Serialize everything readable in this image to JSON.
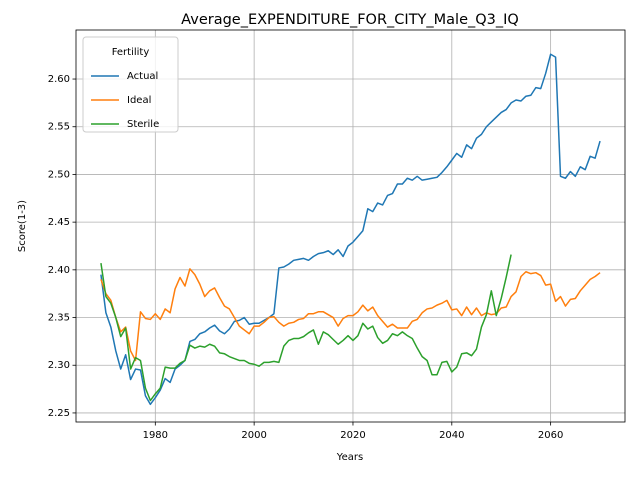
{
  "chart_data": {
    "type": "line",
    "title": "Average_EXPENDITURE_FOR_CITY_Male_Q3_IQ",
    "xlabel": "Years",
    "ylabel": "Score(1-3)",
    "legend_title": "Fertility",
    "legend": "upper left",
    "grid": true,
    "x": [
      1969,
      1970,
      1971,
      1972,
      1973,
      1974,
      1975,
      1976,
      1977,
      1978,
      1979,
      1980,
      1981,
      1982,
      1983,
      1984,
      1985,
      1986,
      1987,
      1988,
      1989,
      1990,
      1991,
      1992,
      1993,
      1994,
      1995,
      1996,
      1997,
      1998,
      1999,
      2000,
      2001,
      2002,
      2003,
      2004,
      2005,
      2006,
      2007,
      2008,
      2009,
      2010,
      2011,
      2012,
      2013,
      2014,
      2015,
      2016,
      2017,
      2018,
      2019,
      2020,
      2021,
      2022,
      2023,
      2024,
      2025,
      2026,
      2027,
      2028,
      2029,
      2030,
      2031,
      2032,
      2033,
      2034,
      2035,
      2036,
      2037,
      2038,
      2039,
      2040,
      2041,
      2042,
      2043,
      2044,
      2045,
      2046,
      2047,
      2048,
      2049,
      2050,
      2051,
      2052,
      2053,
      2054,
      2055,
      2056,
      2057,
      2058,
      2059,
      2060,
      2061,
      2062,
      2063,
      2064,
      2065,
      2066,
      2067,
      2068,
      2069,
      2070
    ],
    "series": [
      {
        "name": "Actual",
        "color": "#1f77b4",
        "values": [
          2.395,
          2.355,
          2.34,
          2.315,
          2.296,
          2.311,
          2.285,
          2.296,
          2.295,
          2.268,
          2.259,
          2.266,
          2.274,
          2.286,
          2.282,
          2.296,
          2.3,
          2.305,
          2.325,
          2.327,
          2.333,
          2.335,
          2.339,
          2.342,
          2.336,
          2.333,
          2.338,
          2.346,
          2.347,
          2.35,
          2.343,
          2.344,
          2.344,
          2.347,
          2.35,
          2.354,
          2.402,
          2.403,
          2.406,
          2.41,
          2.411,
          2.412,
          2.41,
          2.414,
          2.417,
          2.418,
          2.42,
          2.416,
          2.421,
          2.414,
          2.425,
          2.429,
          2.435,
          2.441,
          2.464,
          2.461,
          2.47,
          2.468,
          2.478,
          2.48,
          2.49,
          2.49,
          2.496,
          2.494,
          2.498,
          2.494,
          2.495,
          2.496,
          2.497,
          2.502,
          2.508,
          2.515,
          2.522,
          2.518,
          2.531,
          2.527,
          2.538,
          2.542,
          2.55,
          2.555,
          2.56,
          2.565,
          2.568,
          2.575,
          2.578,
          2.577,
          2.582,
          2.583,
          2.591,
          2.59,
          2.606,
          2.626,
          2.623,
          2.498,
          2.496,
          2.503,
          2.498,
          2.508,
          2.505,
          2.519,
          2.517,
          2.535
        ]
      },
      {
        "name": "Ideal",
        "color": "#ff7f0e",
        "values": [
          2.39,
          2.375,
          2.368,
          2.35,
          2.335,
          2.34,
          2.315,
          2.305,
          2.356,
          2.349,
          2.348,
          2.354,
          2.348,
          2.359,
          2.355,
          2.38,
          2.392,
          2.383,
          2.401,
          2.395,
          2.385,
          2.372,
          2.378,
          2.381,
          2.371,
          2.362,
          2.359,
          2.35,
          2.341,
          2.337,
          2.333,
          2.341,
          2.341,
          2.345,
          2.35,
          2.351,
          2.345,
          2.341,
          2.344,
          2.345,
          2.348,
          2.349,
          2.354,
          2.354,
          2.356,
          2.356,
          2.353,
          2.35,
          2.341,
          2.349,
          2.352,
          2.352,
          2.356,
          2.363,
          2.357,
          2.361,
          2.352,
          2.346,
          2.34,
          2.343,
          2.339,
          2.339,
          2.339,
          2.346,
          2.348,
          2.355,
          2.359,
          2.36,
          2.363,
          2.365,
          2.368,
          2.358,
          2.359,
          2.352,
          2.361,
          2.353,
          2.36,
          2.352,
          2.355,
          2.353,
          2.354,
          2.36,
          2.361,
          2.372,
          2.377,
          2.393,
          2.398,
          2.396,
          2.397,
          2.394,
          2.384,
          2.385,
          2.367,
          2.372,
          2.362,
          2.369,
          2.37,
          2.378,
          2.384,
          2.39,
          2.393,
          2.397
        ]
      },
      {
        "name": "Sterile",
        "color": "#2ca02c",
        "values": [
          2.407,
          2.372,
          2.365,
          2.35,
          2.33,
          2.339,
          2.296,
          2.308,
          2.305,
          2.276,
          2.263,
          2.27,
          2.276,
          2.298,
          2.297,
          2.297,
          2.302,
          2.305,
          2.321,
          2.318,
          2.32,
          2.319,
          2.322,
          2.32,
          2.313,
          2.312,
          2.309,
          2.307,
          2.305,
          2.305,
          2.302,
          2.301,
          2.299,
          2.303,
          2.303,
          2.304,
          2.303,
          2.32,
          2.326,
          2.328,
          2.328,
          2.33,
          2.334,
          2.337,
          2.322,
          2.335,
          2.332,
          2.327,
          2.322,
          2.326,
          2.331,
          2.326,
          2.331,
          2.344,
          2.338,
          2.341,
          2.329,
          2.323,
          2.326,
          2.333,
          2.331,
          2.335,
          2.331,
          2.328,
          2.318,
          2.309,
          2.305,
          2.29,
          2.29,
          2.303,
          2.304,
          2.293,
          2.298,
          2.312,
          2.313,
          2.31,
          2.317,
          2.34,
          2.353,
          2.378,
          2.352,
          2.37,
          2.392,
          2.416,
          null,
          null,
          null,
          null,
          null,
          null,
          null,
          null,
          null,
          null,
          null,
          null,
          null,
          null,
          null,
          null,
          null,
          null
        ]
      }
    ],
    "xlim": [
      1963.95,
      2075.05
    ],
    "xticks": [
      1980,
      2000,
      2020,
      2040,
      2060
    ],
    "ylim": [
      2.2405,
      2.6514
    ],
    "yticks": [
      2.25,
      {
        "value": 2.3,
        "label": "2.30"
      },
      2.35,
      {
        "value": 2.4,
        "label": "2.40"
      },
      2.45,
      {
        "value": 2.5,
        "label": "2.50"
      },
      2.55,
      {
        "value": 2.6,
        "label": "2.60"
      }
    ]
  }
}
